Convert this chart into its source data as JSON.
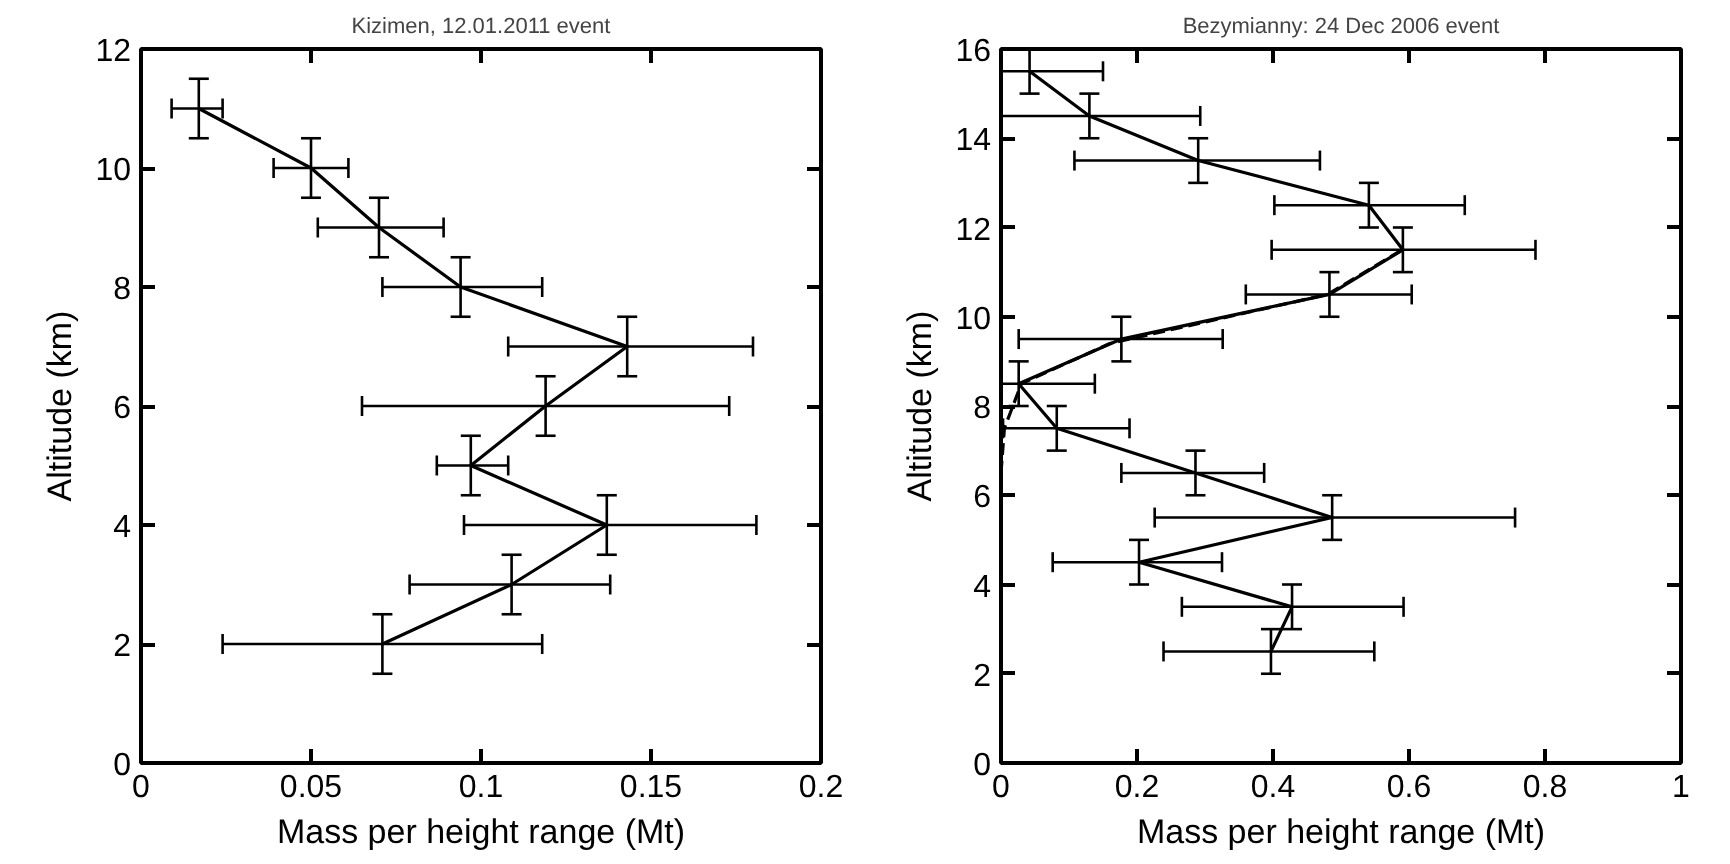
{
  "chart_data": [
    {
      "type": "line",
      "title": "Kizimen, 12.01.2011 event",
      "xlabel": "Mass per height range (Mt)",
      "ylabel": "Altitude (km)",
      "xlim": [
        0,
        0.2
      ],
      "xticks": [
        0,
        0.05,
        0.1,
        0.15,
        0.2
      ],
      "ylim": [
        0,
        12
      ],
      "yticks": [
        0,
        2,
        4,
        6,
        8,
        10,
        12
      ],
      "grid": false,
      "marker": "none",
      "series": [
        {
          "color": "#000000",
          "line_style": "solid",
          "x": [
            0.017,
            0.05,
            0.07,
            0.094,
            0.143,
            0.119,
            0.097,
            0.137,
            0.109,
            0.071
          ],
          "values": [
            11,
            10,
            9,
            8,
            7,
            6,
            5,
            4,
            3,
            2
          ],
          "errors": [
            0.5,
            0.5,
            0.5,
            0.5,
            0.5,
            0.5,
            0.5,
            0.5,
            0.5,
            0.5
          ],
          "xerrors": [
            [
              0.009,
              0.024
            ],
            [
              0.039,
              0.061
            ],
            [
              0.052,
              0.089
            ],
            [
              0.071,
              0.118
            ],
            [
              0.108,
              0.18
            ],
            [
              0.065,
              0.173
            ],
            [
              0.087,
              0.108
            ],
            [
              0.095,
              0.181
            ],
            [
              0.079,
              0.138
            ],
            [
              0.024,
              0.118
            ]
          ]
        }
      ]
    },
    {
      "type": "line",
      "title": "Bezymianny: 24 Dec 2006 event",
      "xlabel": "Mass per height range (Mt)",
      "ylabel": "Altitude (km)",
      "xlim": [
        0,
        1
      ],
      "xticks": [
        0,
        0.2,
        0.4,
        0.6,
        0.8,
        1
      ],
      "ylim": [
        0,
        16
      ],
      "yticks": [
        0,
        2,
        4,
        6,
        8,
        10,
        12,
        14,
        16
      ],
      "grid": false,
      "marker": "none",
      "series": [
        {
          "color": "#000000",
          "line_style": "dashed",
          "x": [
            0.0,
            0.005,
            0.03,
            0.16,
            0.48,
            0.59
          ],
          "values": [
            6.5,
            7.5,
            8.5,
            9.4,
            10.5,
            11.5
          ]
        },
        {
          "color": "#000000",
          "line_style": "solid",
          "x": [
            0.042,
            0.13,
            0.29,
            0.541,
            0.591,
            0.483,
            0.177,
            0.026,
            0.082,
            0.286,
            0.487,
            0.203,
            0.428,
            0.397
          ],
          "values": [
            15.5,
            14.5,
            13.5,
            12.5,
            11.5,
            10.5,
            9.5,
            8.5,
            7.5,
            6.5,
            5.5,
            4.5,
            3.5,
            2.5
          ],
          "errors": [
            0.5,
            0.5,
            0.5,
            0.5,
            0.5,
            0.5,
            0.5,
            0.5,
            0.5,
            0.5,
            0.5,
            0.5,
            0.5,
            0.5
          ],
          "xerrors": [
            [
              0,
              0.15
            ],
            [
              0,
              0.293
            ],
            [
              0.108,
              0.469
            ],
            [
              0.402,
              0.682
            ],
            [
              0.398,
              0.786
            ],
            [
              0.36,
              0.604
            ],
            [
              0.026,
              0.326
            ],
            [
              0,
              0.138
            ],
            [
              0.003,
              0.189
            ],
            [
              0.177,
              0.387
            ],
            [
              0.226,
              0.756
            ],
            [
              0.076,
              0.325
            ],
            [
              0.266,
              0.592
            ],
            [
              0.239,
              0.549
            ]
          ]
        }
      ]
    }
  ]
}
